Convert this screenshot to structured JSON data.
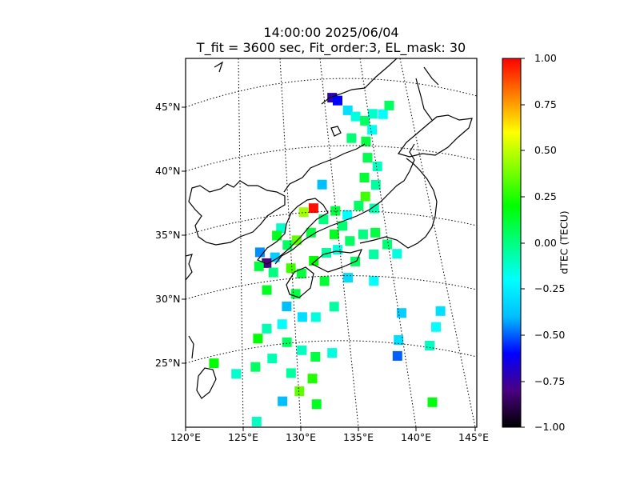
{
  "title": {
    "line1": "14:00:00 2025/06/04",
    "line2": "T_fit = 3600 sec, Fit_order:3, EL_mask: 30"
  },
  "lat_labels": [
    "45°N",
    "40°N",
    "35°N",
    "30°N",
    "25°N"
  ],
  "lon_labels": [
    "120°E",
    "125°E",
    "130°E",
    "135°E",
    "140°E",
    "145°E"
  ],
  "colorbar": {
    "label": "dTEC (TECU)",
    "ticks": [
      "1.00",
      "0.75",
      "0.50",
      "0.25",
      "0.00",
      "−0.25",
      "−0.50",
      "−0.75",
      "−1.00"
    ],
    "range": [
      -1.0,
      1.0
    ],
    "colormap": [
      "#000000",
      "#4b0082",
      "#0000ff",
      "#00bfff",
      "#00ffff",
      "#00ff80",
      "#00ff00",
      "#80ff00",
      "#ffff00",
      "#ff8000",
      "#ff0000"
    ]
  },
  "map_extent": {
    "lon": [
      120,
      145
    ],
    "lat": [
      20,
      49
    ]
  },
  "projection": "Lambert conformal (curved parallels)",
  "gridlines": "dotted",
  "data_points": [
    {
      "lon": 137.8,
      "lat": 45.4,
      "dtec": -0.72
    },
    {
      "lon": 138.4,
      "lat": 45.1,
      "dtec": -0.6
    },
    {
      "lon": 139.4,
      "lat": 44.2,
      "dtec": -0.3
    },
    {
      "lon": 140.2,
      "lat": 43.6,
      "dtec": -0.15
    },
    {
      "lon": 141.2,
      "lat": 43.1,
      "dtec": 0.05
    },
    {
      "lon": 142.3,
      "lat": 43.4,
      "dtec": -0.12
    },
    {
      "lon": 143.5,
      "lat": 43.1,
      "dtec": -0.2
    },
    {
      "lon": 144.5,
      "lat": 43.5,
      "dtec": 0.05
    },
    {
      "lon": 141.8,
      "lat": 42.3,
      "dtec": -0.18
    },
    {
      "lon": 140.8,
      "lat": 41.6,
      "dtec": 0.1
    },
    {
      "lon": 139.2,
      "lat": 42.1,
      "dtec": 0.02
    },
    {
      "lon": 140.6,
      "lat": 40.4,
      "dtec": 0.08
    },
    {
      "lon": 141.5,
      "lat": 39.6,
      "dtec": -0.1
    },
    {
      "lon": 139.8,
      "lat": 39.0,
      "dtec": 0.12
    },
    {
      "lon": 140.9,
      "lat": 38.3,
      "dtec": -0.05
    },
    {
      "lon": 139.5,
      "lat": 37.6,
      "dtec": 0.3
    },
    {
      "lon": 138.6,
      "lat": 37.0,
      "dtec": 0.05
    },
    {
      "lon": 140.2,
      "lat": 36.6,
      "dtec": -0.08
    },
    {
      "lon": 137.2,
      "lat": 36.4,
      "dtec": -0.2
    },
    {
      "lon": 136.5,
      "lat": 35.6,
      "dtec": 0.02
    },
    {
      "lon": 135.5,
      "lat": 35.0,
      "dtec": 0.15
    },
    {
      "lon": 133.7,
      "lat": 37.1,
      "dtec": 0.98
    },
    {
      "lon": 132.6,
      "lat": 36.8,
      "dtec": 0.45
    },
    {
      "lon": 133.1,
      "lat": 35.2,
      "dtec": 0.1
    },
    {
      "lon": 131.5,
      "lat": 34.6,
      "dtec": 0.35
    },
    {
      "lon": 130.5,
      "lat": 34.2,
      "dtec": 0.05
    },
    {
      "lon": 129.1,
      "lat": 33.2,
      "dtec": -0.35
    },
    {
      "lon": 128.2,
      "lat": 32.7,
      "dtec": -0.8
    },
    {
      "lon": 127.6,
      "lat": 33.5,
      "dtec": -0.45
    },
    {
      "lon": 128.8,
      "lat": 32.0,
      "dtec": 0.0
    },
    {
      "lon": 130.6,
      "lat": 32.4,
      "dtec": 0.3
    },
    {
      "lon": 131.6,
      "lat": 32.0,
      "dtec": 0.1
    },
    {
      "lon": 133.0,
      "lat": 33.0,
      "dtec": 0.2
    },
    {
      "lon": 134.4,
      "lat": 33.6,
      "dtec": -0.05
    },
    {
      "lon": 135.6,
      "lat": 33.8,
      "dtec": -0.15
    },
    {
      "lon": 137.0,
      "lat": 34.4,
      "dtec": 0.05
    },
    {
      "lon": 138.5,
      "lat": 34.8,
      "dtec": 0.0
    },
    {
      "lon": 139.8,
      "lat": 34.8,
      "dtec": 0.1
    },
    {
      "lon": 140.8,
      "lat": 33.8,
      "dtec": 0.02
    },
    {
      "lon": 141.6,
      "lat": 33.0,
      "dtec": -0.15
    },
    {
      "lon": 139.2,
      "lat": 33.2,
      "dtec": -0.05
    },
    {
      "lon": 137.2,
      "lat": 32.8,
      "dtec": 0.05
    },
    {
      "lon": 136.2,
      "lat": 31.6,
      "dtec": -0.3
    },
    {
      "lon": 138.7,
      "lat": 31.2,
      "dtec": -0.2
    },
    {
      "lon": 130.8,
      "lat": 30.4,
      "dtec": 0.1
    },
    {
      "lon": 128.0,
      "lat": 30.6,
      "dtec": 0.15
    },
    {
      "lon": 129.8,
      "lat": 29.4,
      "dtec": -0.4
    },
    {
      "lon": 131.2,
      "lat": 28.6,
      "dtec": -0.3
    },
    {
      "lon": 132.5,
      "lat": 28.6,
      "dtec": -0.15
    },
    {
      "lon": 129.2,
      "lat": 28.0,
      "dtec": -0.2
    },
    {
      "lon": 127.7,
      "lat": 27.6,
      "dtec": -0.08
    },
    {
      "lon": 126.8,
      "lat": 26.8,
      "dtec": 0.2
    },
    {
      "lon": 129.5,
      "lat": 26.6,
      "dtec": 0.05
    },
    {
      "lon": 130.8,
      "lat": 26.0,
      "dtec": -0.1
    },
    {
      "lon": 132.0,
      "lat": 25.5,
      "dtec": 0.1
    },
    {
      "lon": 128.0,
      "lat": 25.3,
      "dtec": -0.08
    },
    {
      "lon": 126.4,
      "lat": 24.6,
      "dtec": 0.05
    },
    {
      "lon": 124.6,
      "lat": 24.0,
      "dtec": -0.12
    },
    {
      "lon": 122.6,
      "lat": 24.7,
      "dtec": 0.2
    },
    {
      "lon": 129.6,
      "lat": 24.2,
      "dtec": -0.05
    },
    {
      "lon": 131.5,
      "lat": 23.8,
      "dtec": 0.25
    },
    {
      "lon": 130.2,
      "lat": 22.8,
      "dtec": 0.35
    },
    {
      "lon": 128.6,
      "lat": 22.0,
      "dtec": -0.4
    },
    {
      "lon": 126.2,
      "lat": 20.4,
      "dtec": -0.1
    },
    {
      "lon": 131.6,
      "lat": 21.8,
      "dtec": 0.15
    },
    {
      "lon": 134.4,
      "lat": 29.4,
      "dtec": -0.05
    },
    {
      "lon": 133.6,
      "lat": 25.8,
      "dtec": -0.15
    },
    {
      "lon": 140.8,
      "lat": 28.6,
      "dtec": -0.35
    },
    {
      "lon": 140.0,
      "lat": 26.6,
      "dtec": -0.3
    },
    {
      "lon": 139.6,
      "lat": 25.4,
      "dtec": -0.5
    },
    {
      "lon": 142.8,
      "lat": 26.0,
      "dtec": -0.1
    },
    {
      "lon": 143.8,
      "lat": 27.3,
      "dtec": -0.2
    },
    {
      "lon": 144.6,
      "lat": 28.4,
      "dtec": -0.3
    },
    {
      "lon": 141.9,
      "lat": 21.8,
      "dtec": 0.18
    },
    {
      "lon": 135.0,
      "lat": 38.9,
      "dtec": -0.4
    },
    {
      "lon": 136.0,
      "lat": 36.8,
      "dtec": 0.1
    },
    {
      "lon": 134.6,
      "lat": 36.2,
      "dtec": 0.0
    },
    {
      "lon": 130.0,
      "lat": 35.5,
      "dtec": -0.12
    },
    {
      "lon": 129.5,
      "lat": 34.9,
      "dtec": 0.15
    },
    {
      "lon": 127.4,
      "lat": 32.4,
      "dtec": 0.1
    },
    {
      "lon": 133.8,
      "lat": 31.4,
      "dtec": 0.12
    }
  ]
}
